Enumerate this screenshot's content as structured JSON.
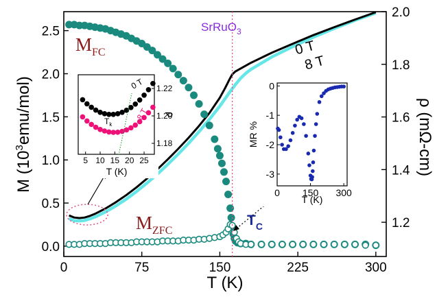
{
  "chart_data": [
    {
      "type": "scatter",
      "axes": {
        "xlabel": "T (K)",
        "ylabel_left": "M (10³emu/mol)",
        "ylabel_left_parts": [
          "M (10",
          "3",
          "emu/mol)"
        ],
        "ylabel_right": "ρ (mΩ-cm)",
        "xlim": [
          0,
          310
        ],
        "ylim_left": [
          -0.12,
          2.72
        ],
        "ylim_right": [
          1.07,
          2.0
        ],
        "xticks": [
          0,
          75,
          150,
          225,
          300
        ],
        "yticks_left": [
          0.0,
          0.5,
          1.0,
          1.5,
          2.0,
          2.5
        ],
        "yticks_right": [
          1.2,
          1.4,
          1.6,
          1.8,
          2.0
        ]
      },
      "annotations": {
        "compound": "SrRuO3",
        "compound_parts": [
          "SrRuO",
          "3"
        ],
        "mfc_parts": [
          "M",
          "FC"
        ],
        "mzfc_parts": [
          "M",
          "ZFC"
        ],
        "tc_parts": [
          "T",
          "C"
        ],
        "label_0T": "0 T",
        "label_8T": "8 T",
        "tc_line_x": 162
      },
      "series": [
        {
          "name": "M_FC",
          "axis": "left",
          "color": "#1b8a7e",
          "marker": "filled-circle",
          "x": [
            5,
            10,
            15,
            20,
            25,
            30,
            35,
            40,
            45,
            50,
            55,
            60,
            65,
            70,
            75,
            80,
            85,
            90,
            95,
            100,
            105,
            110,
            115,
            120,
            125,
            130,
            135,
            140,
            145,
            148,
            150,
            152,
            154,
            156,
            158,
            160,
            161,
            162,
            163,
            164,
            165,
            167,
            170,
            175,
            180,
            190,
            200,
            210,
            220,
            230,
            240,
            250,
            260,
            270,
            280,
            290,
            300
          ],
          "y": [
            2.57,
            2.57,
            2.56,
            2.56,
            2.55,
            2.54,
            2.53,
            2.52,
            2.5,
            2.48,
            2.46,
            2.44,
            2.41,
            2.38,
            2.35,
            2.31,
            2.27,
            2.22,
            2.17,
            2.12,
            2.06,
            1.99,
            1.92,
            1.84,
            1.75,
            1.65,
            1.53,
            1.4,
            1.24,
            1.13,
            1.05,
            0.96,
            0.86,
            0.75,
            0.6,
            0.44,
            0.33,
            0.22,
            0.14,
            0.09,
            0.06,
            0.04,
            0.03,
            0.03,
            0.02,
            0.02,
            0.02,
            0.02,
            0.02,
            0.02,
            0.02,
            0.02,
            0.02,
            0.02,
            0.02,
            0.02,
            0.01
          ]
        },
        {
          "name": "M_ZFC",
          "axis": "left",
          "color": "#1b8a7e",
          "marker": "open-circle",
          "x": [
            5,
            10,
            15,
            20,
            25,
            30,
            35,
            40,
            45,
            50,
            55,
            60,
            65,
            70,
            75,
            80,
            85,
            90,
            95,
            100,
            105,
            110,
            115,
            120,
            125,
            130,
            135,
            140,
            145,
            150,
            153,
            156,
            158,
            160,
            162,
            164,
            166,
            168,
            170,
            175,
            180,
            190,
            200,
            210,
            220,
            230,
            240,
            250,
            260,
            270,
            280,
            290,
            300
          ],
          "y": [
            0.02,
            0.02,
            0.02,
            0.03,
            0.03,
            0.03,
            0.03,
            0.03,
            0.04,
            0.04,
            0.04,
            0.04,
            0.04,
            0.05,
            0.05,
            0.05,
            0.05,
            0.05,
            0.06,
            0.06,
            0.06,
            0.06,
            0.07,
            0.07,
            0.07,
            0.08,
            0.08,
            0.09,
            0.1,
            0.11,
            0.13,
            0.16,
            0.2,
            0.25,
            0.24,
            0.16,
            0.09,
            0.05,
            0.03,
            0.02,
            0.02,
            0.02,
            0.02,
            0.02,
            0.02,
            0.02,
            0.02,
            0.02,
            0.02,
            0.02,
            0.02,
            0.01,
            0.01
          ]
        },
        {
          "name": "rho_0T",
          "axis": "right",
          "color": "#000000",
          "marker": "line",
          "x": [
            5,
            10,
            15,
            20,
            25,
            30,
            40,
            50,
            60,
            70,
            80,
            90,
            100,
            110,
            120,
            130,
            140,
            150,
            155,
            160,
            162,
            165,
            170,
            180,
            200,
            220,
            240,
            260,
            280,
            300
          ],
          "y": [
            1.226,
            1.218,
            1.216,
            1.218,
            1.224,
            1.232,
            1.252,
            1.276,
            1.303,
            1.333,
            1.366,
            1.401,
            1.439,
            1.479,
            1.521,
            1.566,
            1.615,
            1.673,
            1.709,
            1.748,
            1.762,
            1.773,
            1.784,
            1.806,
            1.844,
            1.878,
            1.911,
            1.941,
            1.97,
            1.998
          ]
        },
        {
          "name": "rho_8T",
          "axis": "right",
          "color": "#66e6e6",
          "marker": "line",
          "x": [
            5,
            10,
            15,
            20,
            25,
            30,
            40,
            50,
            60,
            70,
            80,
            90,
            100,
            110,
            120,
            130,
            140,
            150,
            155,
            160,
            165,
            170,
            175,
            180,
            200,
            220,
            240,
            260,
            280,
            300
          ],
          "y": [
            1.214,
            1.206,
            1.205,
            1.207,
            1.213,
            1.22,
            1.239,
            1.262,
            1.288,
            1.317,
            1.349,
            1.383,
            1.42,
            1.459,
            1.5,
            1.544,
            1.591,
            1.641,
            1.669,
            1.697,
            1.723,
            1.747,
            1.766,
            1.781,
            1.828,
            1.867,
            1.903,
            1.936,
            1.967,
            1.995
          ]
        }
      ]
    },
    {
      "type": "scatter",
      "inset": "left",
      "axes": {
        "xlabel": "T (K)",
        "ylabel": "ρ",
        "xlim": [
          2.5,
          28.5
        ],
        "ylim": [
          1.172,
          1.23
        ],
        "xticks": [
          5,
          10,
          15,
          20,
          25
        ],
        "yticks": [
          1.18,
          1.2,
          1.22
        ],
        "ytick_labels": [
          "1.18",
          "1.20",
          "1.22"
        ]
      },
      "annotations": {
        "label_0T": "0 T",
        "label_8T": "8 T",
        "tk_parts": [
          "T",
          "k"
        ]
      },
      "series": [
        {
          "name": "0 T",
          "color": "#000000",
          "x": [
            4,
            5.5,
            7,
            8.5,
            10,
            11.5,
            13,
            14.5,
            16,
            17.5,
            19,
            20.5,
            22,
            23.5,
            25,
            26.5,
            28
          ],
          "y": [
            1.2118,
            1.2088,
            1.2063,
            1.2042,
            1.2026,
            1.2016,
            1.2011,
            1.2011,
            1.2016,
            1.2026,
            1.2041,
            1.2061,
            1.2086,
            1.2116,
            1.2151,
            1.2191,
            1.2236
          ]
        },
        {
          "name": "8 T",
          "color": "#ee1177",
          "x": [
            4,
            5.5,
            7,
            8.5,
            10,
            11.5,
            13,
            14.5,
            16,
            17.5,
            19,
            20.5,
            22,
            23.5,
            25,
            26.5,
            28
          ],
          "y": [
            1.1993,
            1.1963,
            1.1938,
            1.1917,
            1.1901,
            1.189,
            1.1883,
            1.188,
            1.1881,
            1.1887,
            1.1898,
            1.1913,
            1.1933,
            1.1958,
            1.1988,
            1.2023,
            1.2063
          ]
        }
      ]
    },
    {
      "type": "scatter",
      "inset": "right",
      "axes": {
        "xlabel": "T (K)",
        "ylabel": "MR %",
        "xlim": [
          0,
          315
        ],
        "ylim": [
          -3.4,
          0.1
        ],
        "xticks": [
          0,
          150,
          300
        ],
        "yticks": [
          0,
          -1,
          -2,
          -3
        ]
      },
      "series": [
        {
          "name": "MR",
          "color": "#1a2ab0",
          "x": [
            3,
            8,
            15,
            22,
            30,
            40,
            50,
            60,
            70,
            80,
            90,
            100,
            110,
            120,
            130,
            140,
            145,
            150,
            153,
            156,
            158,
            160,
            162,
            165,
            170,
            175,
            180,
            190,
            200,
            210,
            220,
            230,
            240,
            250,
            260,
            270,
            280,
            290,
            300
          ],
          "y": [
            -1.45,
            -1.5,
            -1.75,
            -2.0,
            -2.15,
            -2.15,
            -2.05,
            -1.85,
            -1.6,
            -1.35,
            -1.15,
            -1.05,
            -1.1,
            -1.3,
            -1.7,
            -2.3,
            -2.7,
            -3.05,
            -3.17,
            -3.18,
            -3.1,
            -2.9,
            -2.6,
            -2.2,
            -1.7,
            -1.3,
            -0.95,
            -0.55,
            -0.35,
            -0.25,
            -0.17,
            -0.12,
            -0.09,
            -0.07,
            -0.05,
            -0.04,
            -0.03,
            -0.02,
            -0.02
          ]
        }
      ]
    }
  ]
}
